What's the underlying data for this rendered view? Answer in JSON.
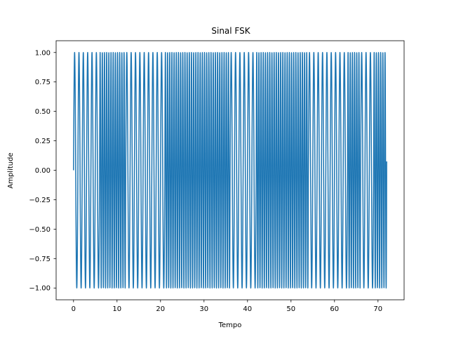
{
  "chart_data": {
    "type": "line",
    "title": "Sinal FSK",
    "xlabel": "Tempo",
    "ylabel": "Amplitude",
    "xlim": [
      -4,
      76
    ],
    "ylim": [
      -1.1,
      1.1
    ],
    "xticks": [
      0,
      10,
      20,
      30,
      40,
      50,
      60,
      70
    ],
    "yticks": [
      -1.0,
      -0.75,
      -0.5,
      -0.25,
      0.0,
      0.25,
      0.5,
      0.75,
      1.0
    ],
    "ytick_labels": [
      "−1.00",
      "−0.75",
      "−0.50",
      "−0.25",
      "0.00",
      "0.25",
      "0.50",
      "0.75",
      "1.00"
    ],
    "grid": false,
    "series": [
      {
        "color": "#1f77b4",
        "signal": "FSK sine wave",
        "t_range": [
          0,
          72
        ],
        "carrier_frequencies": [
          1,
          2
        ],
        "bit_duration": 3
      }
    ]
  }
}
